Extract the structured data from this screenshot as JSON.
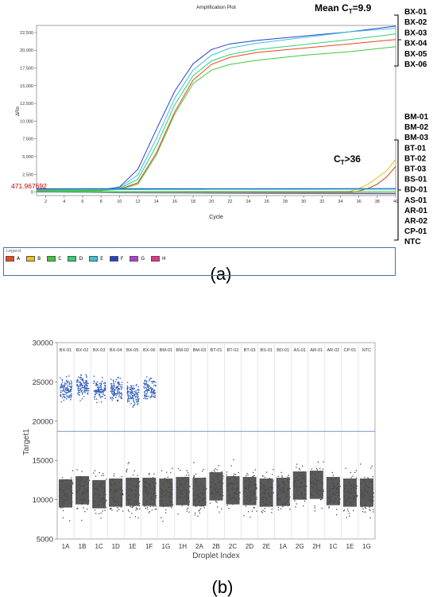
{
  "panel_a": {
    "caption": "(a)",
    "mean_ct_prefix": "Mean C",
    "mean_ct_sub": "T",
    "mean_ct_suffix": "=9.9",
    "ct_late_prefix": "C",
    "ct_late_sub": "T",
    "ct_late_suffix": ">36",
    "threshold_label": "471.967692",
    "legend_title": "Legend",
    "legend": [
      {
        "label": "A",
        "color": "#e8471c"
      },
      {
        "label": "B",
        "color": "#e8c21c"
      },
      {
        "label": "C",
        "color": "#3fc83f"
      },
      {
        "label": "D",
        "color": "#2fd07a"
      },
      {
        "label": "E",
        "color": "#38c4d8"
      },
      {
        "label": "F",
        "color": "#2a3fd0"
      },
      {
        "label": "G",
        "color": "#b03fd0"
      },
      {
        "label": "H",
        "color": "#e8328a"
      }
    ],
    "sample_labels_top": [
      "BX-01",
      "BX-02",
      "BX-03",
      "BX-04",
      "BX-05",
      "BX-06"
    ],
    "sample_labels_bottom": [
      "BM-01",
      "BM-02",
      "BM-03",
      "BT-01",
      "BT-02",
      "BT-03",
      "BS-01",
      "BD-01",
      "AS-01",
      "AR-01",
      "AR-02",
      "CP-01",
      "NTC"
    ]
  },
  "panel_b": {
    "caption": "(b)"
  },
  "chart_data": [
    {
      "type": "line",
      "title": "Amplification Plot",
      "xlabel": "Cycle",
      "ylabel": "ΔRn",
      "xlim": [
        1,
        40
      ],
      "ylim": [
        -500,
        23500
      ],
      "xticks": [
        2,
        4,
        6,
        8,
        10,
        12,
        14,
        16,
        18,
        20,
        22,
        24,
        26,
        28,
        30,
        32,
        34,
        36,
        38,
        40
      ],
      "yticks": [
        0,
        2500,
        5000,
        7500,
        10000,
        12500,
        15000,
        17500,
        20000,
        22500
      ],
      "ytick_labels": [
        "0",
        "2,500",
        "5,000",
        "7,500",
        "10,000",
        "12,500",
        "15,000",
        "17,500",
        "20,000",
        "22,500"
      ],
      "threshold": 471.967692,
      "grid": false,
      "series": [
        {
          "name": "F",
          "color": "#2a3fd0",
          "points": [
            [
              1,
              200
            ],
            [
              8,
              300
            ],
            [
              10,
              700
            ],
            [
              12,
              3200
            ],
            [
              14,
              8800
            ],
            [
              16,
              14200
            ],
            [
              18,
              18100
            ],
            [
              20,
              20100
            ],
            [
              22,
              20900
            ],
            [
              25,
              21400
            ],
            [
              30,
              22000
            ],
            [
              35,
              22600
            ],
            [
              40,
              23400
            ]
          ]
        },
        {
          "name": "E",
          "color": "#38c4d8",
          "points": [
            [
              1,
              250
            ],
            [
              8,
              300
            ],
            [
              10,
              600
            ],
            [
              12,
              2400
            ],
            [
              14,
              7500
            ],
            [
              16,
              13200
            ],
            [
              18,
              17200
            ],
            [
              20,
              19300
            ],
            [
              22,
              20300
            ],
            [
              25,
              21000
            ],
            [
              30,
              21800
            ],
            [
              35,
              22600
            ],
            [
              40,
              23100
            ]
          ]
        },
        {
          "name": "D",
          "color": "#2fd07a",
          "points": [
            [
              1,
              200
            ],
            [
              8,
              250
            ],
            [
              10,
              500
            ],
            [
              12,
              1800
            ],
            [
              14,
              6500
            ],
            [
              16,
              12300
            ],
            [
              18,
              16400
            ],
            [
              20,
              18500
            ],
            [
              22,
              19400
            ],
            [
              25,
              20100
            ],
            [
              30,
              20800
            ],
            [
              35,
              21500
            ],
            [
              40,
              22300
            ]
          ]
        },
        {
          "name": "A",
          "color": "#e8471c",
          "points": [
            [
              1,
              150
            ],
            [
              8,
              200
            ],
            [
              10,
              400
            ],
            [
              12,
              1300
            ],
            [
              14,
              5500
            ],
            [
              16,
              11300
            ],
            [
              18,
              15800
            ],
            [
              20,
              18000
            ],
            [
              22,
              19000
            ],
            [
              25,
              19700
            ],
            [
              30,
              20300
            ],
            [
              35,
              20900
            ],
            [
              40,
              21500
            ]
          ]
        },
        {
          "name": "C",
          "color": "#3fc83f",
          "points": [
            [
              1,
              150
            ],
            [
              8,
              200
            ],
            [
              10,
              350
            ],
            [
              12,
              1100
            ],
            [
              14,
              5200
            ],
            [
              16,
              11000
            ],
            [
              18,
              15300
            ],
            [
              20,
              17200
            ],
            [
              22,
              18000
            ],
            [
              25,
              18600
            ],
            [
              30,
              19300
            ],
            [
              35,
              19800
            ],
            [
              40,
              20500
            ]
          ]
        },
        {
          "name": "B",
          "color": "#e8c21c",
          "points": [
            [
              1,
              0
            ],
            [
              10,
              -20
            ],
            [
              20,
              -60
            ],
            [
              30,
              -80
            ],
            [
              34,
              -40
            ],
            [
              35,
              100
            ],
            [
              36,
              500
            ],
            [
              37,
              1100
            ],
            [
              38,
              2000
            ],
            [
              39,
              3000
            ],
            [
              40,
              4600
            ]
          ]
        },
        {
          "name": "A",
          "color": "#c0461a",
          "points": [
            [
              1,
              30
            ],
            [
              10,
              0
            ],
            [
              20,
              -30
            ],
            [
              30,
              -40
            ],
            [
              35,
              -20
            ],
            [
              36,
              150
            ],
            [
              37,
              500
            ],
            [
              38,
              1100
            ],
            [
              39,
              2100
            ],
            [
              40,
              3600
            ]
          ]
        },
        {
          "name": "F",
          "color": "#2a3fd0",
          "points": [
            [
              1,
              400
            ],
            [
              10,
              420
            ],
            [
              20,
              440
            ],
            [
              30,
              460
            ],
            [
              40,
              480
            ]
          ]
        },
        {
          "name": "E",
          "color": "#38c4d8",
          "points": [
            [
              1,
              320
            ],
            [
              10,
              340
            ],
            [
              20,
              360
            ],
            [
              30,
              380
            ],
            [
              40,
              400
            ]
          ]
        },
        {
          "name": "C",
          "color": "#3fc83f",
          "points": [
            [
              1,
              80
            ],
            [
              10,
              60
            ],
            [
              20,
              70
            ],
            [
              30,
              60
            ],
            [
              40,
              80
            ]
          ]
        },
        {
          "name": "G",
          "color": "#b03fd0",
          "points": [
            [
              1,
              40
            ],
            [
              10,
              -120
            ],
            [
              20,
              -180
            ],
            [
              30,
              -220
            ],
            [
              40,
              -260
            ]
          ]
        },
        {
          "name": "H",
          "color": "#e8328a",
          "points": [
            [
              1,
              30
            ],
            [
              10,
              -60
            ],
            [
              20,
              -110
            ],
            [
              30,
              -150
            ],
            [
              40,
              -180
            ]
          ]
        },
        {
          "name": "D",
          "color": "#2fd07a",
          "points": [
            [
              1,
              -20
            ],
            [
              10,
              -50
            ],
            [
              20,
              -80
            ],
            [
              30,
              -100
            ],
            [
              40,
              -120
            ]
          ]
        }
      ]
    },
    {
      "type": "scatter",
      "xlabel": "Droplet Index",
      "ylabel": "Target1",
      "ylim": [
        5000,
        30000
      ],
      "yticks": [
        5000,
        10000,
        15000,
        20000,
        25000,
        30000
      ],
      "threshold": 18700,
      "grid": false,
      "column_labels": [
        "BX-01",
        "BX-02",
        "BX-03",
        "BX-04",
        "BX-05",
        "BX-06",
        "BM-01",
        "BM-02",
        "BM-03",
        "BT-01",
        "BT-02",
        "BT-03",
        "BS-01",
        "BD-01",
        "AS-01",
        "AR-01",
        "AR-02",
        "CP-01",
        "NTC"
      ],
      "well_labels": [
        "1A",
        "1B",
        "1C",
        "1D",
        "1E",
        "1F",
        "1G",
        "1H",
        "2A",
        "2B",
        "2C",
        "2D",
        "2E",
        "1A",
        "2G",
        "2H",
        "1C",
        "1E",
        "1G"
      ],
      "negative_cluster_center": [
        10800,
        11200,
        10700,
        10900,
        11000,
        11000,
        10900,
        11100,
        11000,
        11700,
        11200,
        11100,
        10900,
        11000,
        11800,
        11900,
        11100,
        10900,
        10900
      ],
      "positive_cluster_center": [
        24100,
        24500,
        23900,
        24000,
        23500,
        24200,
        null,
        null,
        null,
        null,
        null,
        null,
        null,
        null,
        null,
        null,
        null,
        null,
        null
      ]
    }
  ]
}
